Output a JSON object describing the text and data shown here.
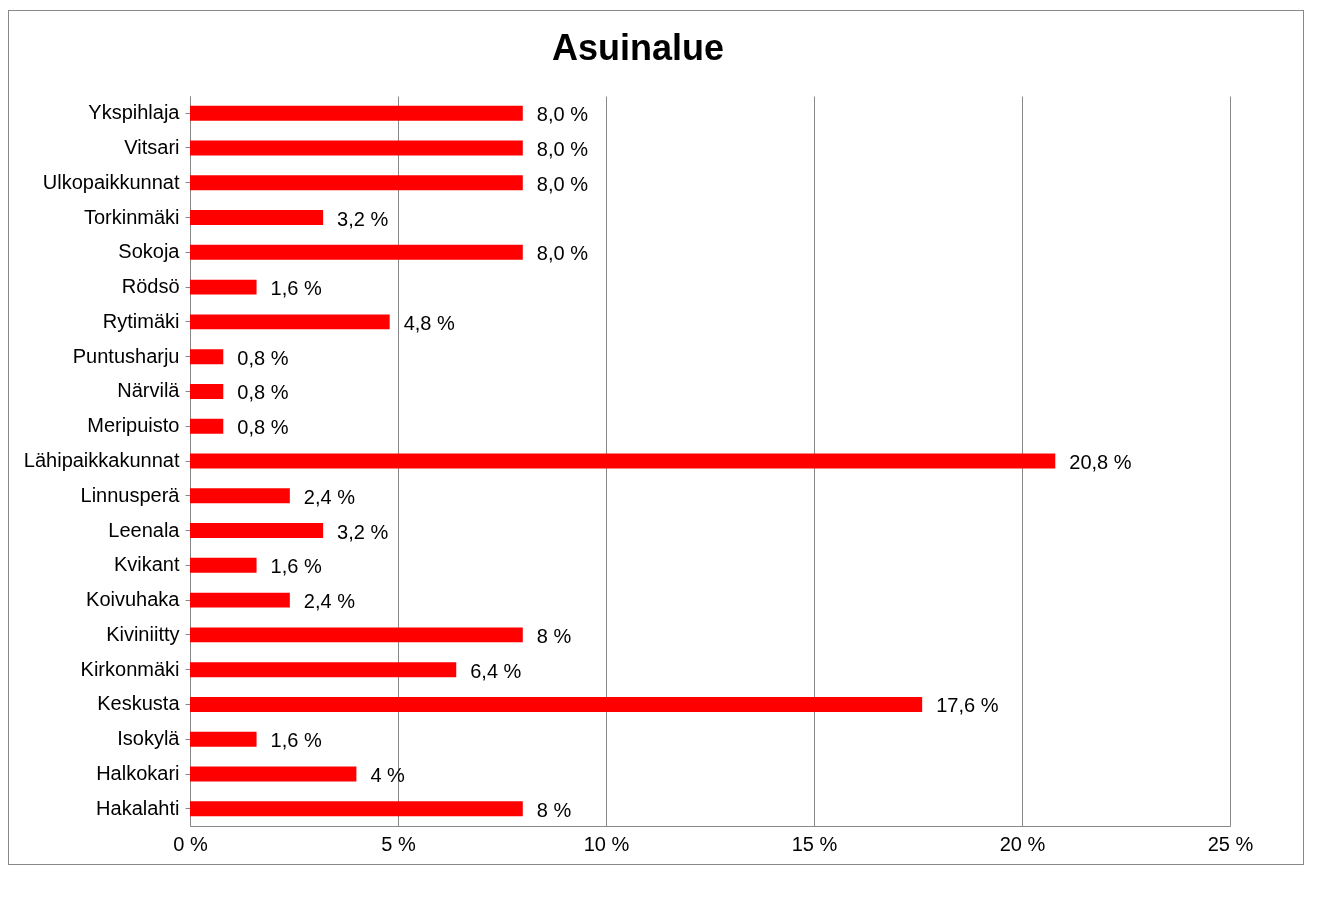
{
  "chart_data": {
    "type": "bar",
    "title": "Asuinalue",
    "orientation": "horizontal",
    "categories": [
      "Ykspihlaja",
      "Vitsari",
      "Ulkopaikkunnat",
      "Torkinmäki",
      "Sokoja",
      "Rödsö",
      "Rytimäki",
      "Puntusharju",
      "Närvilä",
      "Meripuisto",
      "Lähipaikkakunnat",
      "Linnusperä",
      "Leenala",
      "Kvikant",
      "Koivuhaka",
      "Kiviniitty",
      "Kirkonmäki",
      "Keskusta",
      "Isokylä",
      "Halkokari",
      "Hakalahti"
    ],
    "values": [
      8.0,
      8.0,
      8.0,
      3.2,
      8.0,
      1.6,
      4.8,
      0.8,
      0.8,
      0.8,
      20.8,
      2.4,
      3.2,
      1.6,
      2.4,
      8,
      6.4,
      17.6,
      1.6,
      4,
      8
    ],
    "value_labels": [
      "8,0 %",
      "8,0 %",
      "8,0 %",
      "3,2 %",
      "8,0 %",
      "1,6 %",
      "4,8 %",
      "0,8 %",
      "0,8 %",
      "0,8 %",
      "20,8 %",
      "2,4 %",
      "3,2 %",
      "1,6 %",
      "2,4 %",
      "8 %",
      "6,4 %",
      "17,6 %",
      "1,6 %",
      "4 %",
      "8 %"
    ],
    "color": "#ff0000",
    "xlim": [
      0,
      25
    ],
    "xticks": [
      {
        "value": 0,
        "label": "0 %"
      },
      {
        "value": 5,
        "label": "5 %"
      },
      {
        "value": 10,
        "label": "10 %"
      },
      {
        "value": 15,
        "label": "15 %"
      },
      {
        "value": 20,
        "label": "20 %"
      },
      {
        "value": 25,
        "label": "25 %"
      }
    ],
    "grid": "x"
  }
}
